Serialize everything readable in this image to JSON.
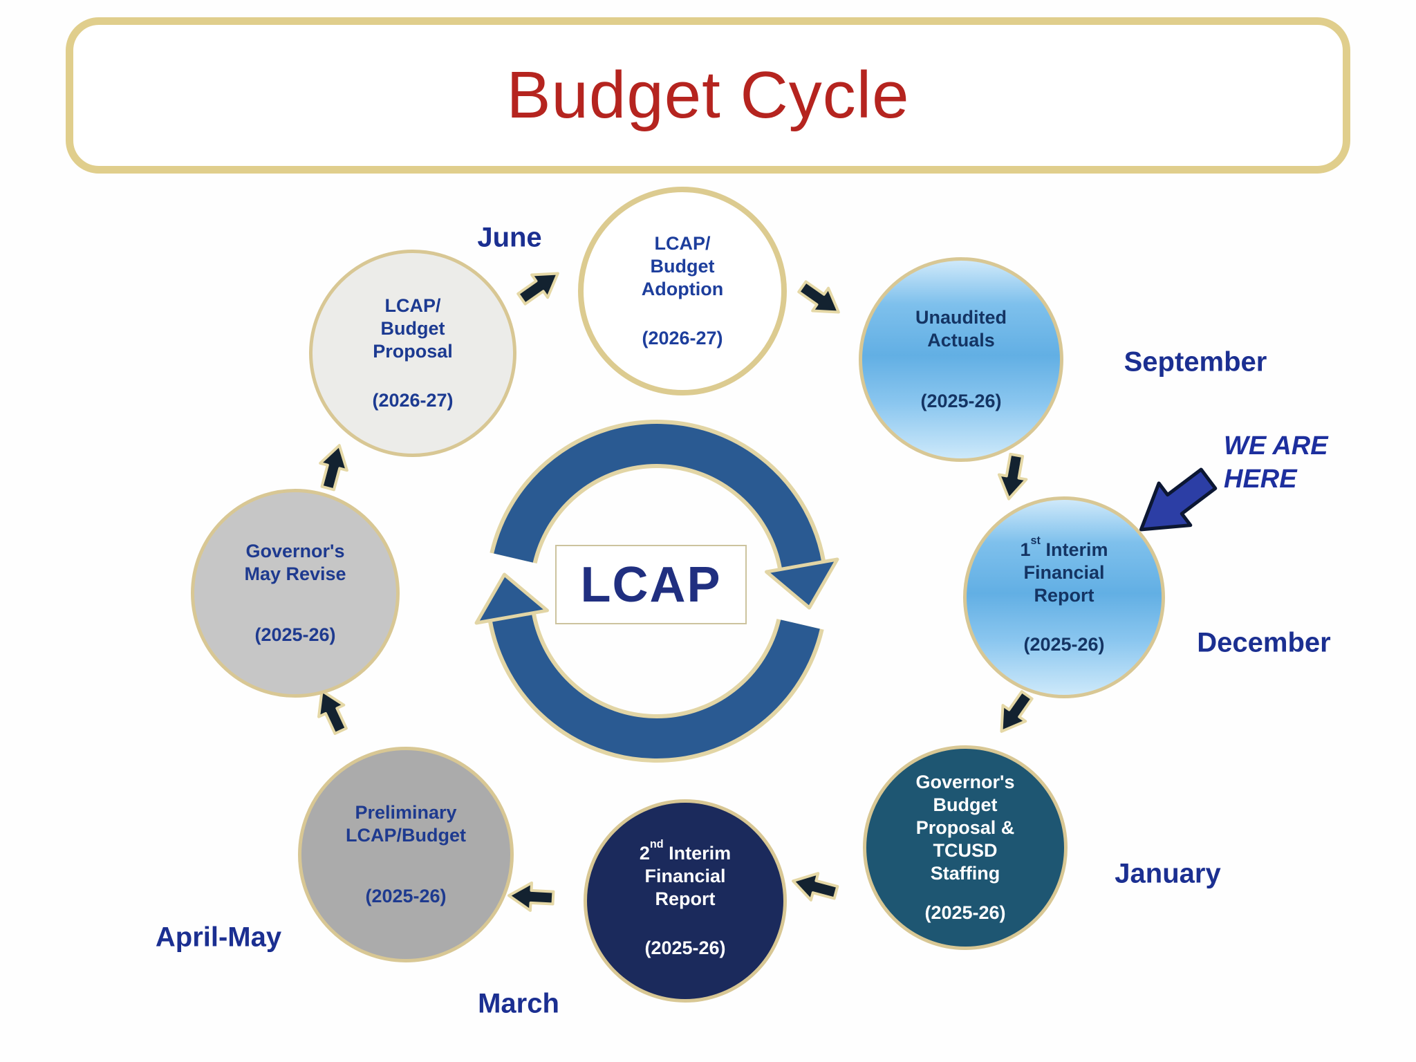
{
  "title": "Budget Cycle",
  "center": {
    "label": "LCAP"
  },
  "we_are_here": {
    "line1": "WE ARE",
    "line2": "HERE"
  },
  "months": [
    {
      "id": "june",
      "label": "June"
    },
    {
      "id": "september",
      "label": "September"
    },
    {
      "id": "december",
      "label": "December"
    },
    {
      "id": "january",
      "label": "January"
    },
    {
      "id": "march",
      "label": "March"
    },
    {
      "id": "april-may",
      "label": "April-May"
    }
  ],
  "nodes": [
    {
      "id": "lcap-budget-proposal",
      "lines": [
        "LCAP/",
        "Budget",
        "Proposal"
      ],
      "year": "(2026-27)",
      "style": "lightgray"
    },
    {
      "id": "lcap-budget-adoption",
      "lines": [
        "LCAP/",
        "Budget",
        "Adoption"
      ],
      "year": "(2026-27)",
      "style": "white"
    },
    {
      "id": "unaudited-actuals",
      "lines": [
        "Unaudited",
        "Actuals"
      ],
      "year": "(2025-26)",
      "style": "blue"
    },
    {
      "id": "first-interim-financial-report",
      "lines": [
        "1st Interim",
        "Financial",
        "Report"
      ],
      "year": "(2025-26)",
      "style": "blue"
    },
    {
      "id": "governors-budget-proposal-tcusd-staffing",
      "lines": [
        "Governor's",
        "Budget",
        "Proposal &",
        "TCUSD",
        "Staffing"
      ],
      "year": "(2025-26)",
      "style": "teal"
    },
    {
      "id": "second-interim-financial-report",
      "lines": [
        "2nd Interim",
        "Financial",
        "Report"
      ],
      "year": "(2025-26)",
      "style": "navy"
    },
    {
      "id": "preliminary-lcap-budget",
      "lines": [
        "Preliminary",
        "LCAP/Budget"
      ],
      "year": "(2025-26)",
      "style": "gray"
    },
    {
      "id": "governors-may-revise",
      "lines": [
        "Governor's",
        "May Revise"
      ],
      "year": "(2025-26)",
      "style": "silver"
    }
  ],
  "colors": {
    "title_text": "#B5241F",
    "box_border": "#E0CE8C",
    "circle_border": "#D8C794",
    "month_text": "#1B2F91",
    "node_text_navy": "#1C3A91",
    "node_text_blue_circle": "#143463",
    "node_text_white": "#FFFFFF",
    "fill_white": "#FFFFFF",
    "fill_light_gray": "#ECECE9",
    "fill_gray": "#ABABAB",
    "fill_silver": "#C6C6C6",
    "fill_teal": "#1E5672",
    "fill_navy": "#1B2A5C",
    "fill_blue_top": "#CFE9FA",
    "fill_blue_mid": "#62AFE4",
    "ring_blue": "#2A5A92",
    "ring_outline": "#E2D5A5",
    "flow_arrow_fill": "#132230",
    "flow_arrow_outline": "#E5D8A6",
    "here_arrow_fill": "#2C3EA5",
    "here_arrow_outline": "#0C1733"
  }
}
